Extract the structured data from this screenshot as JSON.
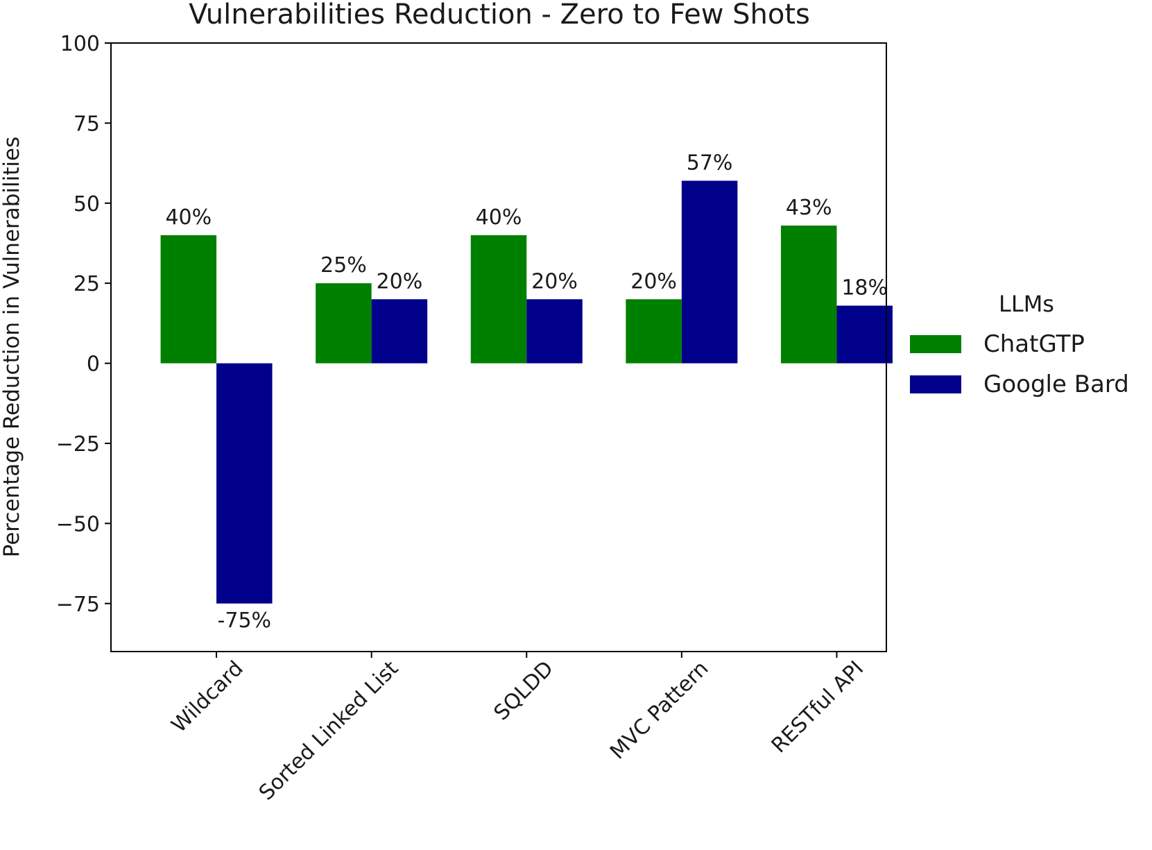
{
  "chart_data": {
    "type": "bar",
    "title": "Vulnerabilities Reduction - Zero to Few Shots",
    "xlabel": "",
    "ylabel": "Percentage Reduction in Vulnerabilities",
    "categories": [
      "Wildcard",
      "Sorted Linked List",
      "SQLDD",
      "MVC Pattern",
      "RESTful API"
    ],
    "series": [
      {
        "name": "ChatGTP",
        "color": "#008000",
        "values": [
          40,
          25,
          40,
          20,
          43
        ],
        "labels": [
          "40%",
          "25%",
          "40%",
          "20%",
          "43%"
        ]
      },
      {
        "name": "Google Bard",
        "color": "#00008b",
        "values": [
          -75,
          20,
          20,
          57,
          18
        ],
        "labels": [
          "-75%",
          "20%",
          "20%",
          "57%",
          "18%"
        ]
      }
    ],
    "ylim": [
      -90,
      100
    ],
    "yticks": [
      100,
      75,
      50,
      25,
      0,
      -25,
      -50,
      -75
    ],
    "ytick_labels": [
      "100",
      "75",
      "50",
      "25",
      "0",
      "−25",
      "−50",
      "−75"
    ],
    "grid": false,
    "legend": {
      "title": "LLMs",
      "placement": "outside-right"
    }
  }
}
